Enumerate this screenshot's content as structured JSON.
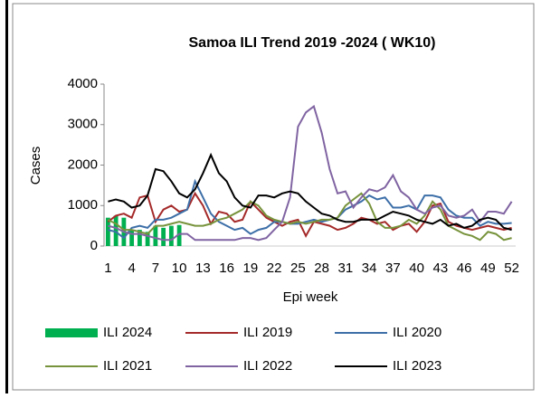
{
  "chart_data": {
    "type": "combo",
    "title": "Samoa ILI Trend 2019 -2024 ( WK10)",
    "x_label": "Epi week",
    "y_label": "Cases",
    "x": [
      1,
      2,
      3,
      4,
      5,
      6,
      7,
      8,
      9,
      10,
      11,
      12,
      13,
      14,
      15,
      16,
      17,
      18,
      19,
      20,
      21,
      22,
      23,
      24,
      25,
      26,
      27,
      28,
      29,
      30,
      31,
      32,
      33,
      34,
      35,
      36,
      37,
      38,
      39,
      40,
      41,
      42,
      43,
      44,
      45,
      46,
      47,
      48,
      49,
      50,
      51,
      52
    ],
    "xlim": [
      0.5,
      52.5
    ],
    "xticks": [
      1,
      4,
      7,
      10,
      13,
      16,
      19,
      22,
      25,
      28,
      31,
      34,
      37,
      40,
      43,
      46,
      49,
      52
    ],
    "ylim": [
      0,
      4000
    ],
    "yticks": [
      0,
      1000,
      2000,
      3000,
      4000
    ],
    "grid": false,
    "series": [
      {
        "name": "ILI 2024",
        "type": "bar",
        "color": "#00b050",
        "values": [
          700,
          750,
          700,
          400,
          400,
          350,
          500,
          450,
          500,
          520,
          null,
          null,
          null,
          null,
          null,
          null,
          null,
          null,
          null,
          null,
          null,
          null,
          null,
          null,
          null,
          null,
          null,
          null,
          null,
          null,
          null,
          null,
          null,
          null,
          null,
          null,
          null,
          null,
          null,
          null,
          null,
          null,
          null,
          null,
          null,
          null,
          null,
          null,
          null,
          null,
          null,
          null
        ]
      },
      {
        "name": "ILI 2019",
        "type": "line",
        "color": "#a52a2a",
        "values": [
          600,
          750,
          800,
          700,
          1200,
          1250,
          600,
          900,
          1000,
          850,
          900,
          1300,
          1000,
          550,
          850,
          800,
          600,
          650,
          1100,
          900,
          700,
          600,
          500,
          600,
          650,
          250,
          600,
          550,
          500,
          400,
          450,
          550,
          700,
          650,
          550,
          600,
          400,
          500,
          550,
          350,
          600,
          1000,
          1050,
          600,
          500,
          450,
          400,
          450,
          500,
          450,
          400,
          450
        ]
      },
      {
        "name": "ILI 2020",
        "type": "line",
        "color": "#3d6fa8",
        "values": [
          400,
          350,
          200,
          450,
          500,
          450,
          650,
          650,
          700,
          800,
          900,
          1600,
          1200,
          800,
          600,
          500,
          400,
          450,
          300,
          400,
          450,
          600,
          600,
          550,
          550,
          600,
          650,
          600,
          650,
          700,
          900,
          1000,
          1100,
          1250,
          1150,
          1200,
          950,
          950,
          1000,
          900,
          1250,
          1250,
          1200,
          900,
          750,
          700,
          700,
          500,
          600,
          550,
          550,
          570
        ]
      },
      {
        "name": "ILI 2021",
        "type": "line",
        "color": "#77933c",
        "values": [
          650,
          550,
          400,
          400,
          350,
          300,
          500,
          500,
          550,
          600,
          550,
          500,
          500,
          550,
          650,
          700,
          800,
          900,
          1100,
          1000,
          750,
          650,
          600,
          550,
          600,
          550,
          600,
          650,
          650,
          700,
          1000,
          1150,
          1300,
          1050,
          600,
          450,
          450,
          500,
          650,
          550,
          750,
          1100,
          900,
          500,
          400,
          300,
          250,
          150,
          350,
          300,
          150,
          200
        ]
      },
      {
        "name": "ILI 2022",
        "type": "line",
        "color": "#8064a2",
        "values": [
          500,
          450,
          350,
          300,
          300,
          250,
          200,
          150,
          150,
          300,
          300,
          150,
          150,
          150,
          150,
          150,
          150,
          200,
          200,
          150,
          200,
          400,
          600,
          1200,
          2950,
          3300,
          3450,
          2800,
          1900,
          1300,
          1350,
          950,
          1200,
          1400,
          1350,
          1450,
          1750,
          1350,
          1200,
          900,
          800,
          950,
          1000,
          750,
          700,
          750,
          900,
          600,
          850,
          850,
          800,
          1100
        ]
      },
      {
        "name": "ILI 2023",
        "type": "line",
        "color": "#000000",
        "values": [
          1100,
          1150,
          1100,
          950,
          1000,
          1250,
          1900,
          1850,
          1600,
          1300,
          1200,
          1400,
          1800,
          2250,
          1800,
          1600,
          1200,
          1000,
          950,
          1250,
          1250,
          1200,
          1300,
          1350,
          1300,
          1100,
          950,
          800,
          750,
          650,
          600,
          600,
          650,
          650,
          650,
          750,
          850,
          800,
          750,
          650,
          600,
          550,
          650,
          500,
          550,
          450,
          500,
          650,
          700,
          650,
          450,
          400
        ]
      }
    ]
  }
}
